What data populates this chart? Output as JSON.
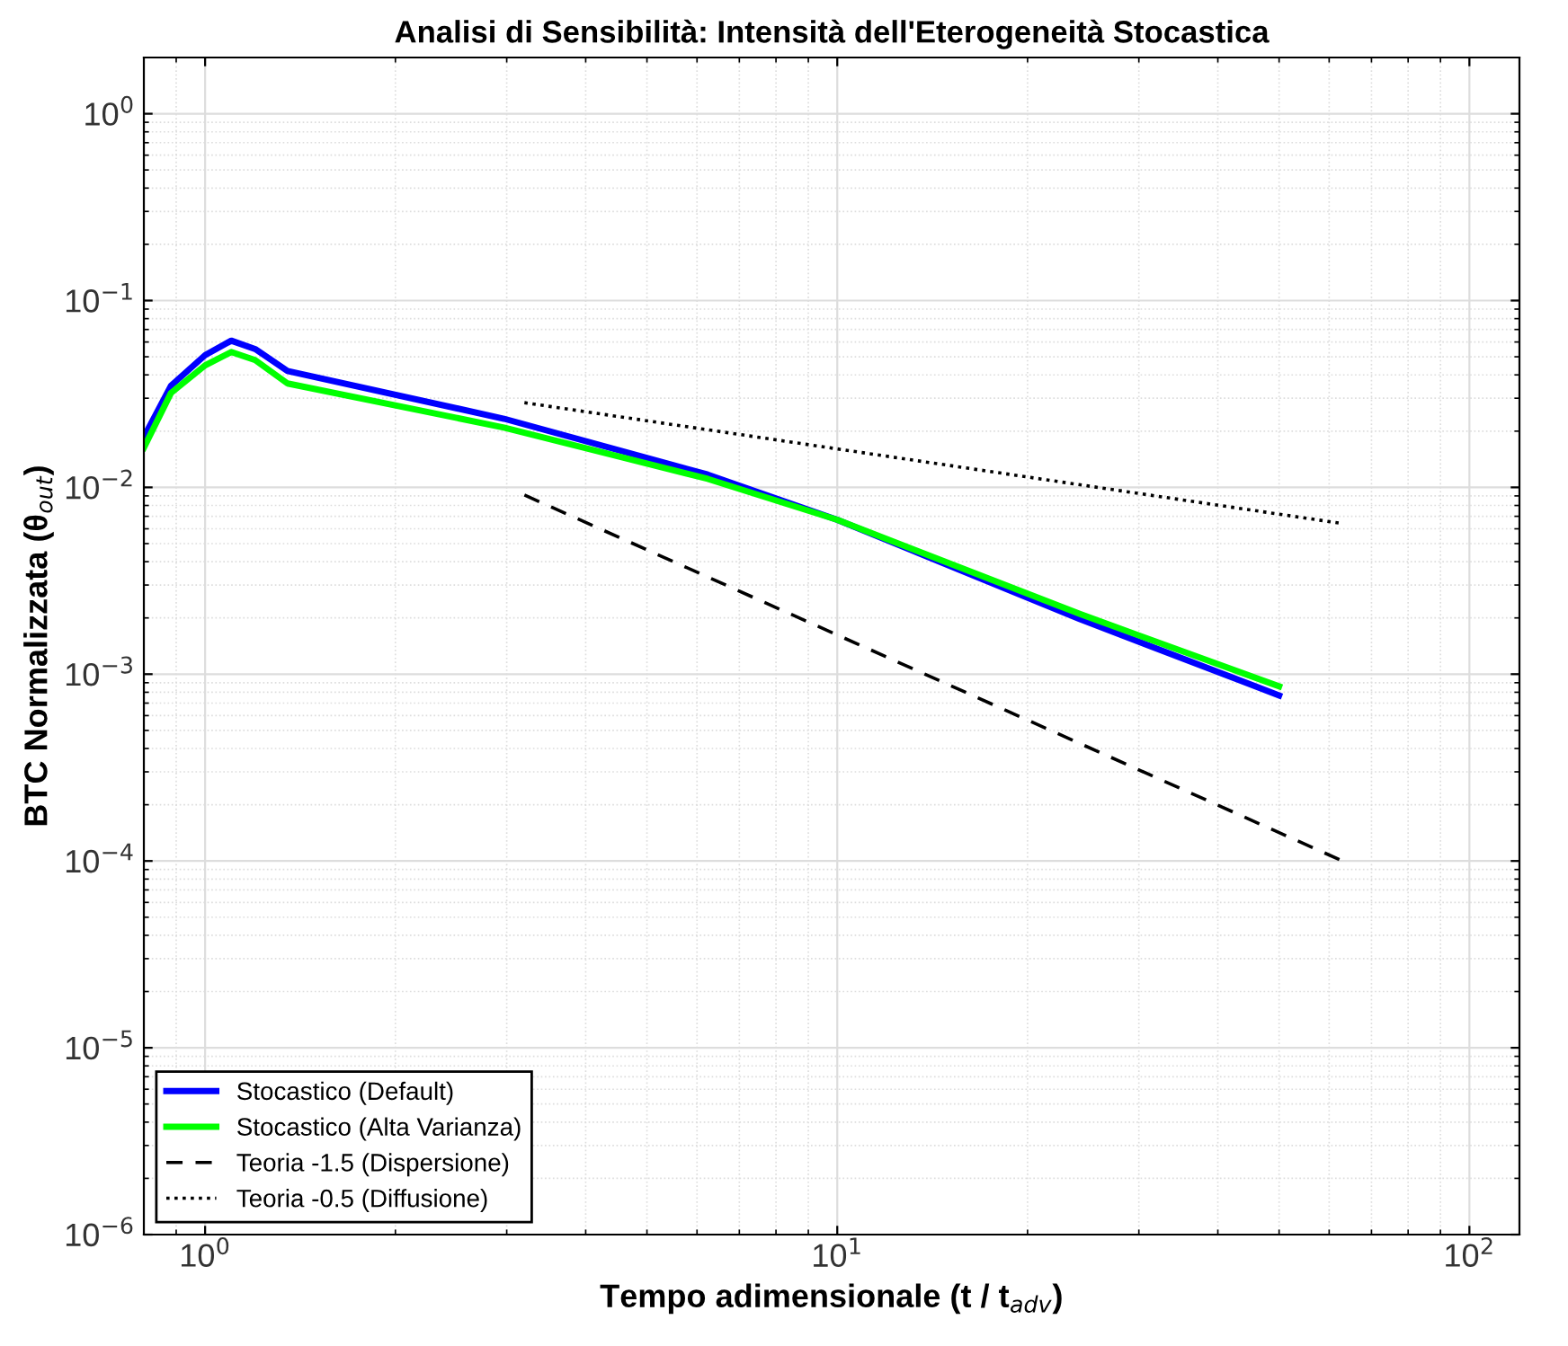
{
  "chart_data": {
    "type": "line",
    "title": "Analisi di Sensibilità: Intensità dell'Eterogeneità Stocastica",
    "xlabel": "Tempo adimensionale (t / t$_{adv}$)",
    "ylabel": "BTC Normalizzata (θ$_{out}$)",
    "log": "xy",
    "grid": true,
    "legend": "bottom left",
    "xlim": [
      0.8,
      120
    ],
    "ylim": [
      1e-06,
      2
    ],
    "xticks": [
      {
        "value": 1,
        "label": "10$^{0}$"
      },
      {
        "value": 10,
        "label": "10$^{1}$"
      },
      {
        "value": 100,
        "label": "10$^{2}$"
      }
    ],
    "yticks": [
      {
        "value": 1e-06,
        "label": "10$^{−6}$"
      },
      {
        "value": 1e-05,
        "label": "10$^{−5}$"
      },
      {
        "value": 0.0001,
        "label": "10$^{−4}$"
      },
      {
        "value": 0.001,
        "label": "10$^{−3}$"
      },
      {
        "value": 0.01,
        "label": "10$^{−2}$"
      },
      {
        "value": 0.1,
        "label": "10$^{−1}$"
      },
      {
        "value": 1,
        "label": "10$^{0}$"
      }
    ],
    "series": [
      {
        "name": "Stocastico (Default)",
        "color": "#0000ff",
        "line_style": "solid",
        "x": [
          0.8,
          0.883,
          1.0,
          1.1,
          1.2,
          1.35,
          2.97,
          6.24,
          10,
          24.2,
          50
        ],
        "values": [
          0.0186,
          0.035,
          0.051,
          0.061,
          0.055,
          0.042,
          0.0233,
          0.0117,
          0.0067,
          0.00197,
          0.00077
        ]
      },
      {
        "name": "Stocastico (Alta Varianza)",
        "color": "#00ff00",
        "line_style": "solid",
        "x": [
          0.8,
          0.883,
          1.0,
          1.1,
          1.2,
          1.35,
          2.97,
          6.24,
          10,
          24.2,
          50
        ],
        "values": [
          0.0163,
          0.032,
          0.045,
          0.053,
          0.048,
          0.036,
          0.0209,
          0.0111,
          0.0067,
          0.0021,
          0.00086
        ]
      },
      {
        "name": "Teoria -1.5 (Dispersione)",
        "color": "#000000",
        "line_style": "dashed",
        "x": [
          3.2,
          63
        ],
        "values": [
          0.0091,
          0.0001
        ]
      },
      {
        "name": "Teoria -0.5 (Diffusione)",
        "color": "#000000",
        "line_style": "dotted",
        "x": [
          3.2,
          63
        ],
        "values": [
          0.0284,
          0.0064
        ]
      }
    ]
  }
}
